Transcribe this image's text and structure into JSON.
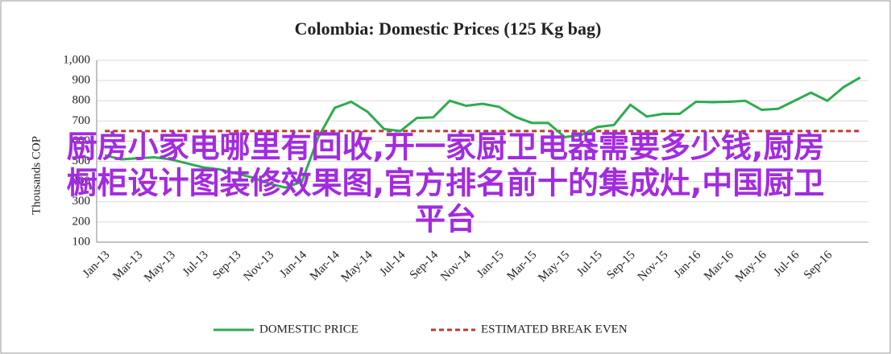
{
  "chart_data": {
    "type": "line",
    "title": "Colombia: Domestic Prices (125 Kg bag)",
    "y_label": "Thousands COP",
    "categories": [
      "Jan-13",
      null,
      "Mar-13",
      null,
      "May-13",
      null,
      "Jul-13",
      null,
      "Sep-13",
      null,
      "Nov-13",
      null,
      "Jan-14",
      null,
      "Mar-14",
      null,
      "May-14",
      null,
      "Jul-14",
      null,
      "Sep-14",
      null,
      "Nov-14",
      null,
      "Jan-15",
      null,
      "Mar-15",
      null,
      "May-15",
      null,
      "Jul-15",
      null,
      "Sep-15",
      null,
      "Nov-15",
      null,
      "Jan-16",
      null,
      "Mar-16",
      null,
      "May-16",
      null,
      "Jul-16",
      null,
      "Sep-16",
      null,
      null
    ],
    "series": [
      {
        "name": "DOMESTIC PRICE",
        "color": "#2eab4f",
        "values": [
          530,
          510,
          515,
          520,
          510,
          490,
          470,
          460,
          440,
          420,
          390,
          370,
          400,
          620,
          765,
          795,
          745,
          660,
          650,
          715,
          718,
          800,
          775,
          785,
          770,
          720,
          690,
          690,
          620,
          630,
          670,
          680,
          780,
          722,
          735,
          735,
          795,
          793,
          795,
          800,
          755,
          760,
          800,
          840,
          800,
          868,
          915
        ]
      }
    ],
    "break_even": {
      "name": "ESTIMATED BREAK EVEN",
      "color": "#c0392b",
      "value": 650
    },
    "ylim": [
      100,
      1000
    ],
    "yticks": [
      100,
      200,
      300,
      400,
      500,
      600,
      700,
      800,
      900,
      {
        "value": 1000,
        "label": "1,000"
      }
    ],
    "grid": true,
    "overlay_text": [
      "厨房小家电哪里有回收,开一家厨卫电器需要多少钱,厨房",
      "橱柜设计图装修效果图,官方排名前十的集成灶,中国厨卫",
      "平台"
    ]
  }
}
